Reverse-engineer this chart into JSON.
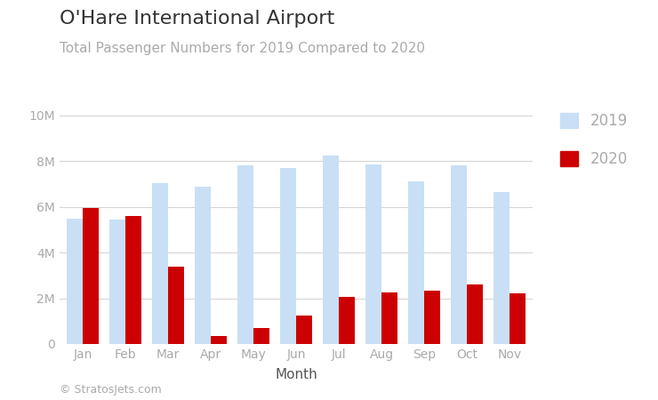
{
  "title": "O'Hare International Airport",
  "subtitle": "Total Passenger Numbers for 2019 Compared to 2020",
  "xlabel": "Month",
  "months": [
    "Jan",
    "Feb",
    "Mar",
    "Apr",
    "May",
    "Jun",
    "Jul",
    "Aug",
    "Sep",
    "Oct",
    "Nov"
  ],
  "values_2019": [
    5500000,
    5450000,
    7050000,
    6900000,
    7800000,
    7700000,
    8250000,
    7850000,
    7100000,
    7800000,
    6650000
  ],
  "values_2020": [
    5950000,
    5600000,
    3400000,
    350000,
    700000,
    1250000,
    2050000,
    2250000,
    2350000,
    2600000,
    2200000
  ],
  "color_2019": "#c9dff5",
  "color_2020": "#cc0000",
  "legend_2019": "2019",
  "legend_2020": "2020",
  "ylim": [
    0,
    10500000
  ],
  "yticks": [
    0,
    2000000,
    4000000,
    6000000,
    8000000,
    10000000
  ],
  "ytick_labels": [
    "0",
    "2M",
    "4M",
    "6M",
    "8M",
    "10M"
  ],
  "title_fontsize": 16,
  "subtitle_fontsize": 11,
  "xlabel_fontsize": 11,
  "tick_fontsize": 10,
  "legend_fontsize": 12,
  "footer_text": "© StratosJets.com",
  "bg_color": "#ffffff",
  "grid_color": "#d5d5d5",
  "title_color": "#333333",
  "subtitle_color": "#aaaaaa",
  "tick_color": "#aaaaaa",
  "xlabel_color": "#555555"
}
